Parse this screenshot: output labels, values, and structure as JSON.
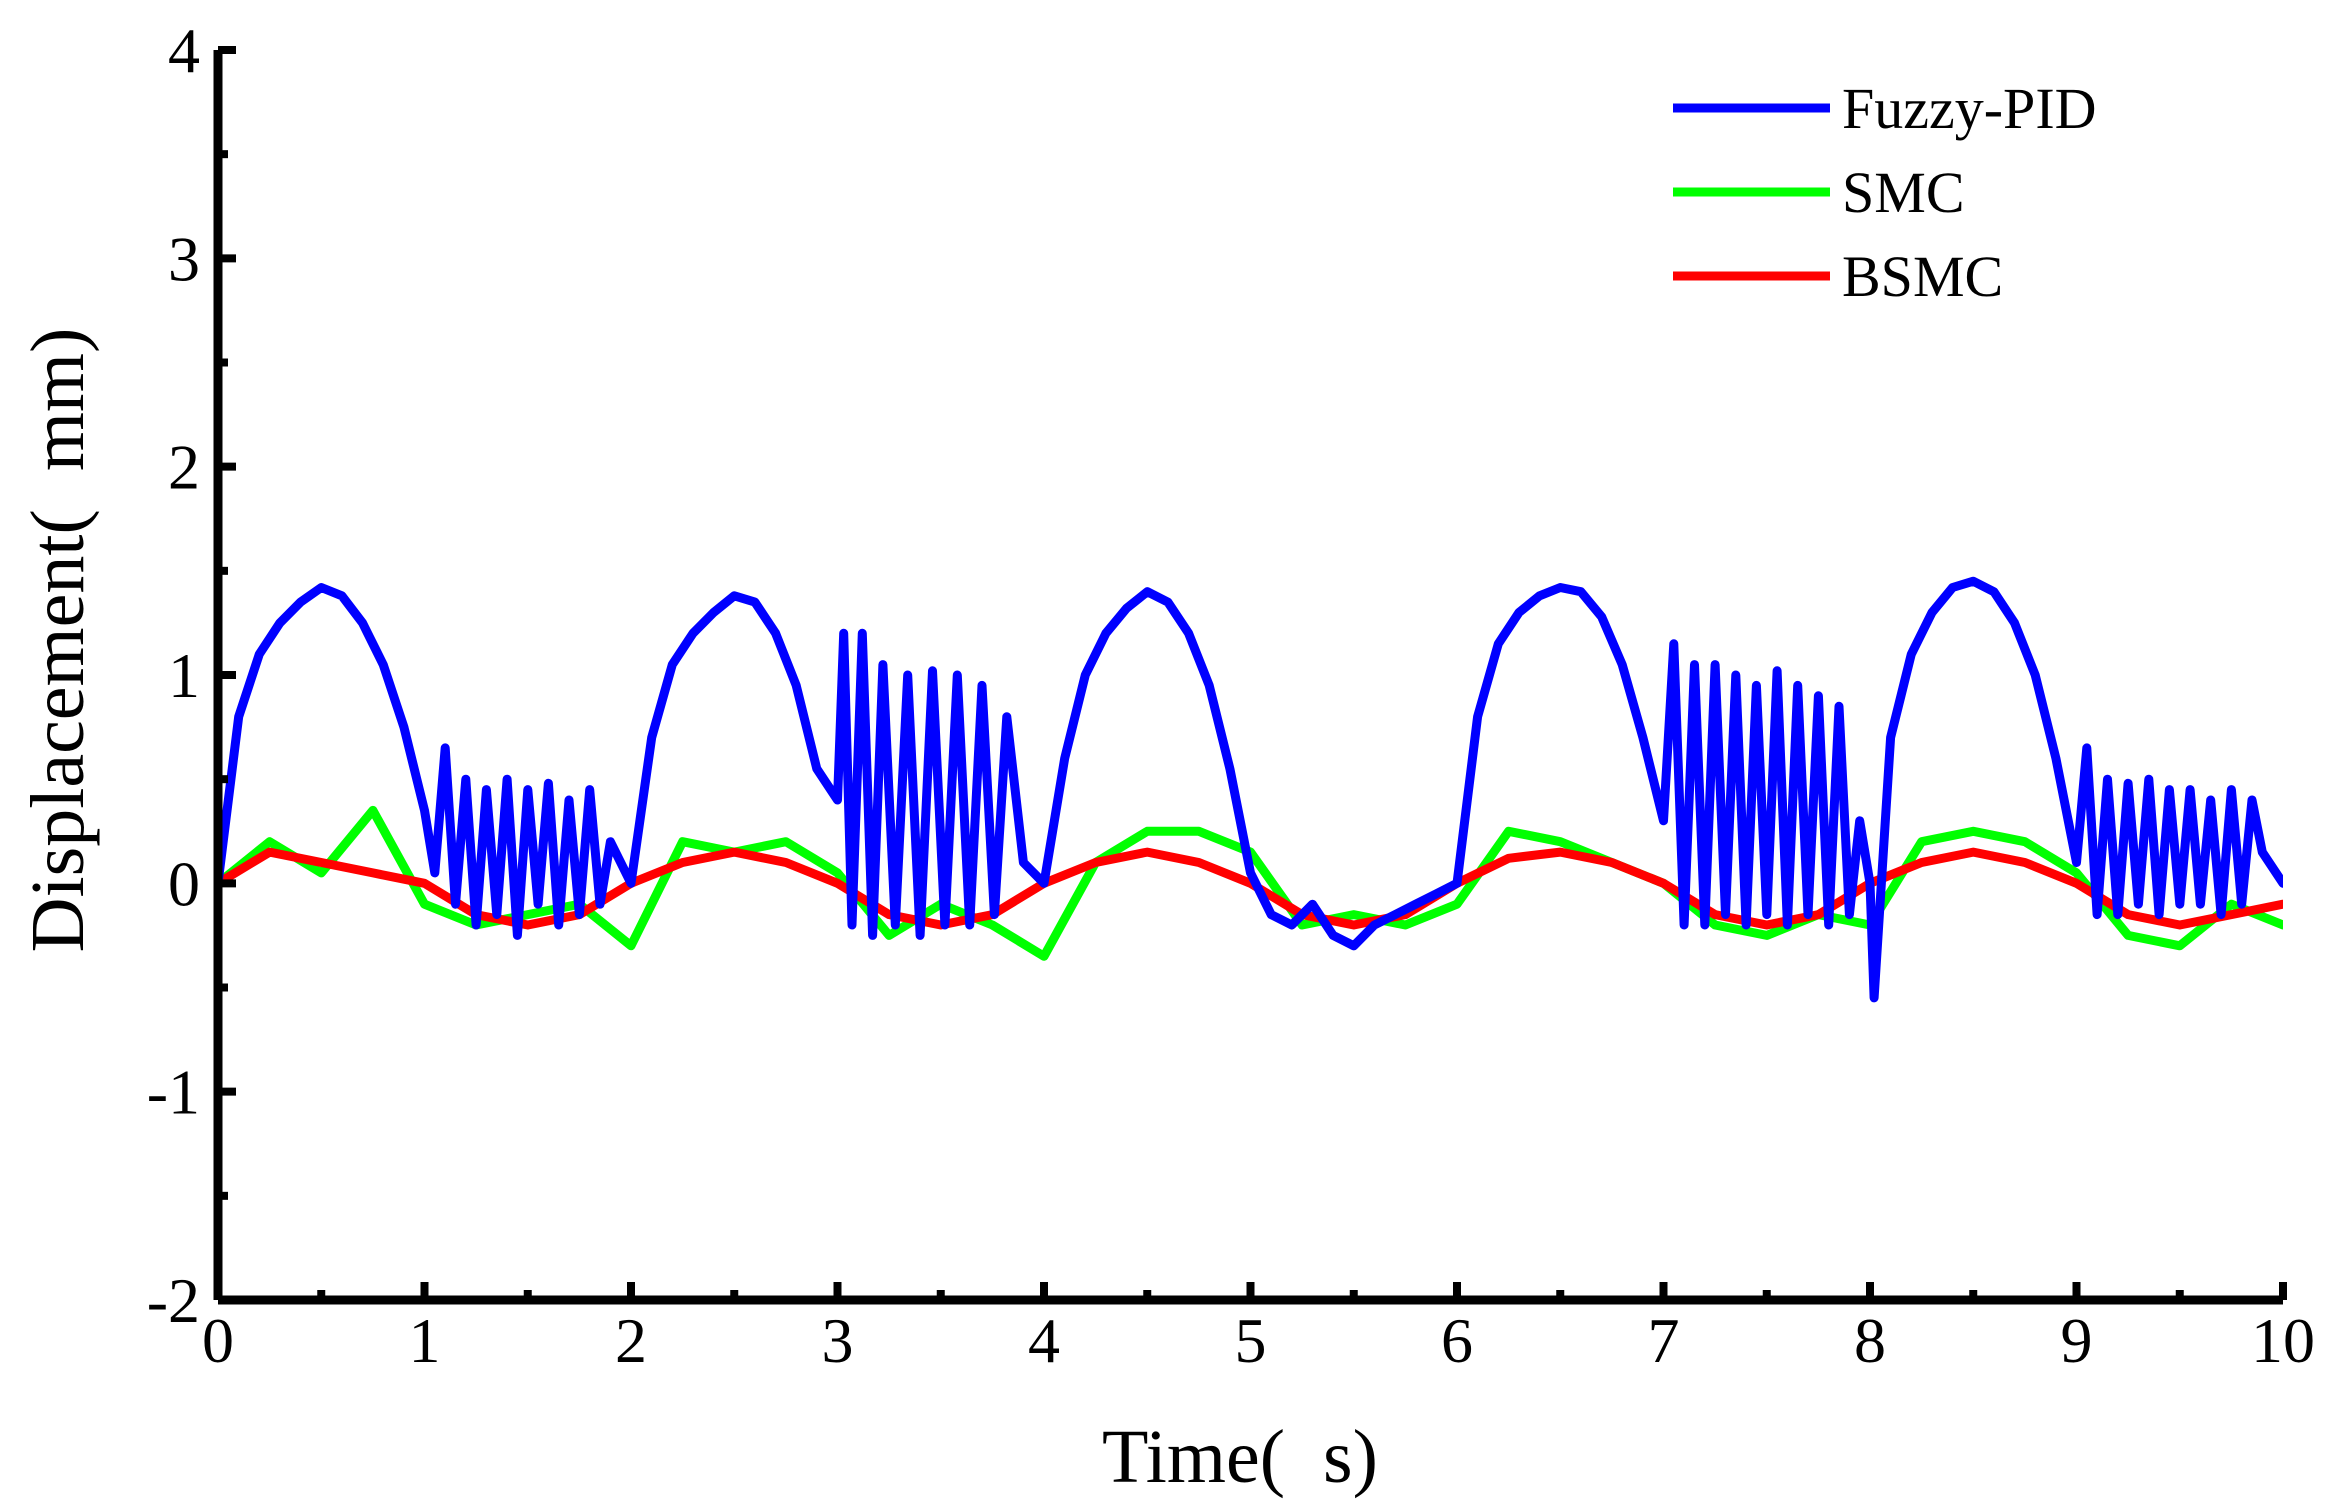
{
  "chart_data": {
    "type": "line",
    "title": "",
    "xlabel": "Time(  s)",
    "ylabel": "Displacement(  mm)",
    "xlim": [
      0,
      10
    ],
    "ylim": [
      -2,
      4
    ],
    "xticks": [
      0,
      1,
      2,
      3,
      4,
      5,
      6,
      7,
      8,
      9,
      10
    ],
    "yticks": [
      -2,
      -1,
      0,
      1,
      2,
      3,
      4
    ],
    "xtick_labels": [
      "0",
      "1",
      "2",
      "3",
      "4",
      "5",
      "6",
      "7",
      "8",
      "9",
      "10"
    ],
    "ytick_labels": [
      "-2",
      "-1",
      "0",
      "1",
      "2",
      "3",
      "4"
    ],
    "grid": false,
    "legend_position": "top-right",
    "series": [
      {
        "name": "Fuzzy-PID",
        "color": "#0000ff",
        "x": [
          0,
          0.1,
          0.2,
          0.3,
          0.4,
          0.5,
          0.6,
          0.7,
          0.8,
          0.9,
          1.0,
          1.05,
          1.1,
          1.15,
          1.2,
          1.25,
          1.3,
          1.35,
          1.4,
          1.45,
          1.5,
          1.55,
          1.6,
          1.65,
          1.7,
          1.75,
          1.8,
          1.85,
          1.9,
          2.0,
          2.1,
          2.2,
          2.3,
          2.4,
          2.5,
          2.6,
          2.7,
          2.8,
          2.9,
          3.0,
          3.03,
          3.07,
          3.12,
          3.17,
          3.22,
          3.28,
          3.34,
          3.4,
          3.46,
          3.52,
          3.58,
          3.64,
          3.7,
          3.76,
          3.82,
          3.9,
          4.0,
          4.1,
          4.2,
          4.3,
          4.4,
          4.5,
          4.6,
          4.7,
          4.8,
          4.9,
          5.0,
          5.1,
          5.2,
          5.3,
          5.4,
          5.5,
          5.6,
          5.7,
          5.8,
          5.9,
          6.0,
          6.1,
          6.2,
          6.3,
          6.4,
          6.5,
          6.6,
          6.7,
          6.8,
          6.9,
          7.0,
          7.05,
          7.1,
          7.15,
          7.2,
          7.25,
          7.3,
          7.35,
          7.4,
          7.45,
          7.5,
          7.55,
          7.6,
          7.65,
          7.7,
          7.75,
          7.8,
          7.85,
          7.9,
          7.95,
          8.0,
          8.02,
          8.1,
          8.2,
          8.3,
          8.4,
          8.5,
          8.6,
          8.7,
          8.8,
          8.9,
          9.0,
          9.05,
          9.1,
          9.15,
          9.2,
          9.25,
          9.3,
          9.35,
          9.4,
          9.45,
          9.5,
          9.55,
          9.6,
          9.65,
          9.7,
          9.75,
          9.8,
          9.85,
          9.9,
          10.0
        ],
        "y": [
          0.0,
          0.8,
          1.1,
          1.25,
          1.35,
          1.42,
          1.38,
          1.25,
          1.05,
          0.75,
          0.35,
          0.05,
          0.65,
          -0.1,
          0.5,
          -0.2,
          0.45,
          -0.15,
          0.5,
          -0.25,
          0.45,
          -0.1,
          0.48,
          -0.2,
          0.4,
          -0.15,
          0.45,
          -0.1,
          0.2,
          0.0,
          0.7,
          1.05,
          1.2,
          1.3,
          1.38,
          1.35,
          1.2,
          0.95,
          0.55,
          0.4,
          1.2,
          -0.2,
          1.2,
          -0.25,
          1.05,
          -0.2,
          1.0,
          -0.25,
          1.02,
          -0.2,
          1.0,
          -0.2,
          0.95,
          -0.15,
          0.8,
          0.1,
          0.0,
          0.6,
          1.0,
          1.2,
          1.32,
          1.4,
          1.35,
          1.2,
          0.95,
          0.55,
          0.05,
          -0.15,
          -0.2,
          -0.1,
          -0.25,
          -0.3,
          -0.2,
          -0.15,
          -0.1,
          -0.05,
          0.0,
          0.8,
          1.15,
          1.3,
          1.38,
          1.42,
          1.4,
          1.28,
          1.05,
          0.7,
          0.3,
          1.15,
          -0.2,
          1.05,
          -0.2,
          1.05,
          -0.15,
          1.0,
          -0.2,
          0.95,
          -0.15,
          1.02,
          -0.2,
          0.95,
          -0.15,
          0.9,
          -0.2,
          0.85,
          -0.15,
          0.3,
          0.0,
          -0.55,
          0.7,
          1.1,
          1.3,
          1.42,
          1.45,
          1.4,
          1.25,
          1.0,
          0.6,
          0.1,
          0.65,
          -0.15,
          0.5,
          -0.15,
          0.48,
          -0.1,
          0.5,
          -0.15,
          0.45,
          -0.1,
          0.45,
          -0.1,
          0.4,
          -0.15,
          0.45,
          -0.1,
          0.4,
          0.15,
          0.0
        ]
      },
      {
        "name": "SMC",
        "color": "#00ff00",
        "x": [
          0,
          0.25,
          0.5,
          0.75,
          1.0,
          1.25,
          1.5,
          1.75,
          2.0,
          2.25,
          2.5,
          2.75,
          3.0,
          3.25,
          3.5,
          3.75,
          4.0,
          4.25,
          4.5,
          4.75,
          5.0,
          5.25,
          5.5,
          5.75,
          6.0,
          6.25,
          6.5,
          6.75,
          7.0,
          7.25,
          7.5,
          7.75,
          8.0,
          8.25,
          8.5,
          8.75,
          9.0,
          9.25,
          9.5,
          9.75,
          10.0
        ],
        "y": [
          0.0,
          0.2,
          0.05,
          0.35,
          -0.1,
          -0.2,
          -0.15,
          -0.1,
          -0.3,
          0.2,
          0.15,
          0.2,
          0.05,
          -0.25,
          -0.1,
          -0.2,
          -0.35,
          0.1,
          0.25,
          0.25,
          0.15,
          -0.2,
          -0.15,
          -0.2,
          -0.1,
          0.25,
          0.2,
          0.1,
          0.0,
          -0.2,
          -0.25,
          -0.15,
          -0.2,
          0.2,
          0.25,
          0.2,
          0.05,
          -0.25,
          -0.3,
          -0.1,
          -0.2
        ]
      },
      {
        "name": "BSMC",
        "color": "#ff0000",
        "x": [
          0,
          0.25,
          0.5,
          0.75,
          1.0,
          1.25,
          1.5,
          1.75,
          2.0,
          2.25,
          2.5,
          2.75,
          3.0,
          3.25,
          3.5,
          3.75,
          4.0,
          4.25,
          4.5,
          4.75,
          5.0,
          5.25,
          5.5,
          5.75,
          6.0,
          6.25,
          6.5,
          6.75,
          7.0,
          7.25,
          7.5,
          7.75,
          8.0,
          8.25,
          8.5,
          8.75,
          9.0,
          9.25,
          9.5,
          9.75,
          10.0
        ],
        "y": [
          0.0,
          0.15,
          0.1,
          0.05,
          0.0,
          -0.15,
          -0.2,
          -0.15,
          0.0,
          0.1,
          0.15,
          0.1,
          0.0,
          -0.15,
          -0.2,
          -0.15,
          0.0,
          0.1,
          0.15,
          0.1,
          0.0,
          -0.15,
          -0.2,
          -0.15,
          0.0,
          0.12,
          0.15,
          0.1,
          0.0,
          -0.15,
          -0.2,
          -0.15,
          0.0,
          0.1,
          0.15,
          0.1,
          0.0,
          -0.15,
          -0.2,
          -0.15,
          -0.1
        ]
      }
    ]
  }
}
